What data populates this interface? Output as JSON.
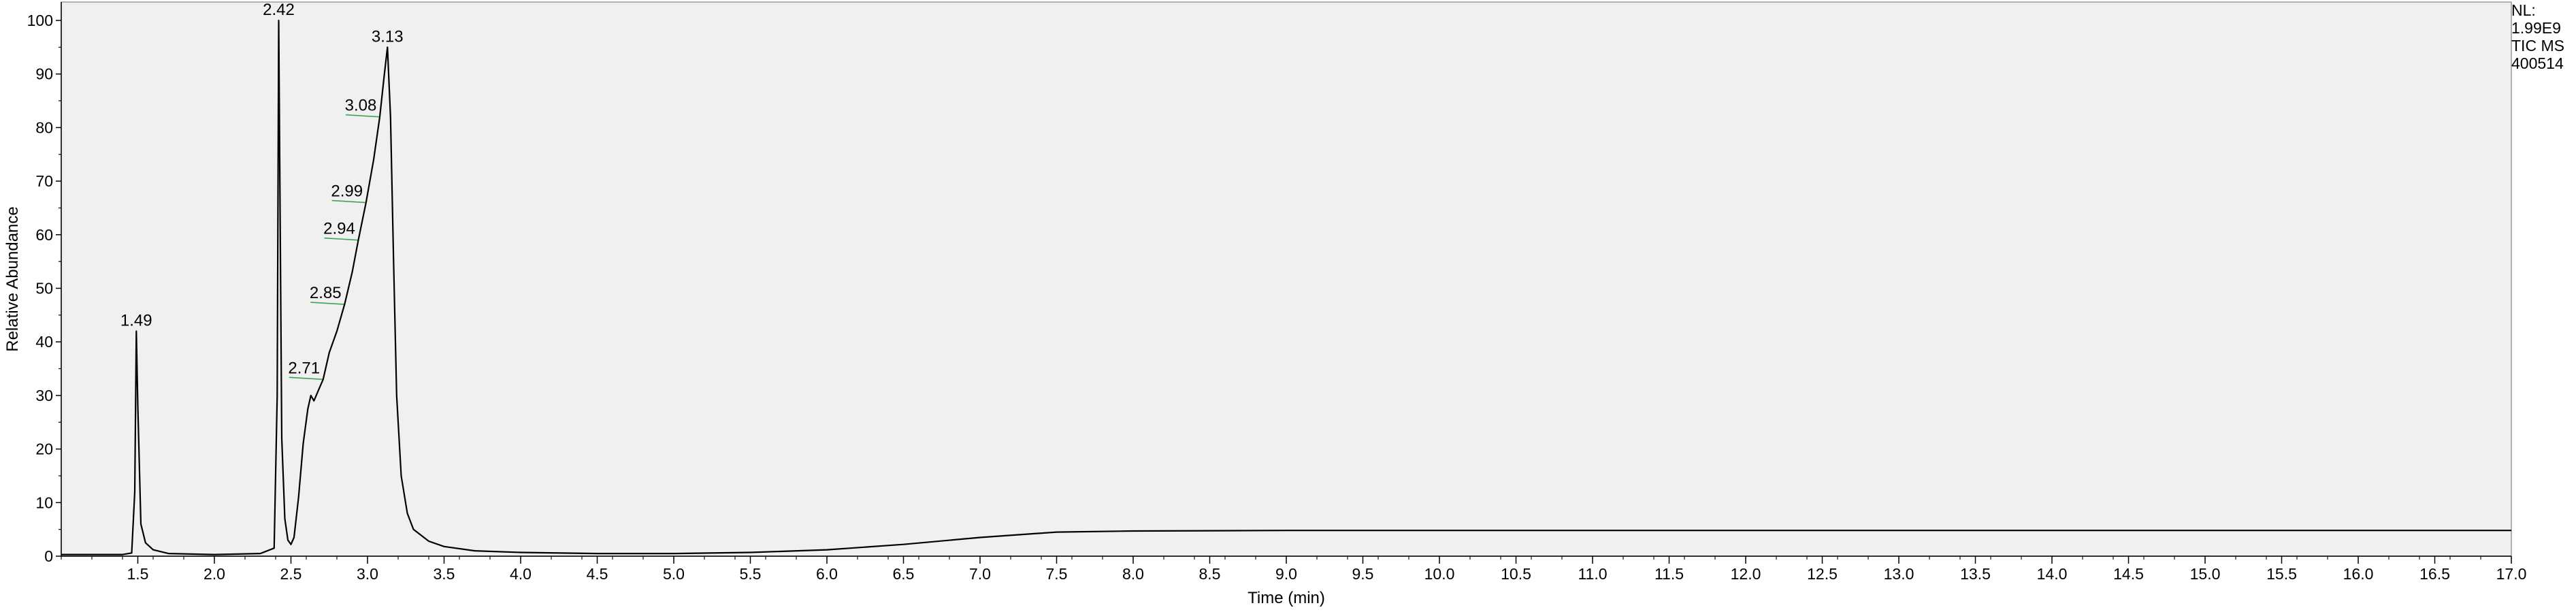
{
  "chart_data": {
    "type": "line",
    "title": "",
    "xlabel": "Time (min)",
    "ylabel": "Relative Abundance",
    "xlim": [
      1.0,
      17.0
    ],
    "ylim": [
      0,
      100
    ],
    "x_ticks": [
      1.5,
      2.0,
      2.5,
      3.0,
      3.5,
      4.0,
      4.5,
      5.0,
      5.5,
      6.0,
      6.5,
      7.0,
      7.5,
      8.0,
      8.5,
      9.0,
      9.5,
      10.0,
      10.5,
      11.0,
      11.5,
      12.0,
      12.5,
      13.0,
      13.5,
      14.0,
      14.5,
      15.0,
      15.5,
      16.0,
      16.5,
      17.0
    ],
    "x_tick_labels": [
      "1.5",
      "2.0",
      "2.5",
      "3.0",
      "3.5",
      "4.0",
      "4.5",
      "5.0",
      "5.5",
      "6.0",
      "6.5",
      "7.0",
      "7.5",
      "8.0",
      "8.5",
      "9.0",
      "9.5",
      "10.0",
      "10.5",
      "11.0",
      "11.5",
      "12.0",
      "12.5",
      "13.0",
      "13.5",
      "14.0",
      "14.5",
      "15.0",
      "15.5",
      "16.0",
      "16.5",
      "17.0"
    ],
    "y_ticks": [
      0,
      10,
      20,
      30,
      40,
      50,
      60,
      70,
      80,
      90,
      100
    ],
    "y_tick_labels": [
      "0",
      "10",
      "20",
      "30",
      "40",
      "50",
      "60",
      "70",
      "80",
      "90",
      "100"
    ],
    "grid": false,
    "series": [
      {
        "x": [
          1.0,
          1.4,
          1.46,
          1.48,
          1.49,
          1.5,
          1.52,
          1.55,
          1.6,
          1.7,
          2.0,
          2.3,
          2.39,
          2.41,
          2.42,
          2.43,
          2.44,
          2.46,
          2.48,
          2.5,
          2.52,
          2.55,
          2.58,
          2.61,
          2.63,
          2.65,
          2.68,
          2.71,
          2.75,
          2.8,
          2.85,
          2.9,
          2.94,
          2.99,
          3.04,
          3.08,
          3.11,
          3.13,
          3.15,
          3.17,
          3.19,
          3.22,
          3.26,
          3.3,
          3.4,
          3.5,
          3.7,
          4.0,
          4.5,
          5.0,
          5.5,
          6.0,
          6.5,
          7.0,
          7.5,
          8.0,
          9.0,
          10.0,
          11.0,
          12.0,
          13.0,
          14.0,
          15.0,
          16.0,
          17.0
        ],
        "y": [
          0.3,
          0.3,
          0.6,
          12,
          42,
          28,
          6,
          2.5,
          1.2,
          0.5,
          0.3,
          0.5,
          1.5,
          30,
          100,
          60,
          22,
          7,
          3,
          2.2,
          3.5,
          11,
          21,
          27.5,
          30,
          29,
          31,
          33,
          38,
          42,
          47,
          53,
          59,
          66,
          74,
          82,
          90,
          95,
          82,
          55,
          30,
          15,
          8,
          5,
          2.8,
          1.8,
          1.0,
          0.7,
          0.5,
          0.5,
          0.7,
          1.2,
          2.2,
          3.5,
          4.5,
          4.7,
          4.8,
          4.8,
          4.8,
          4.8,
          4.8,
          4.8,
          4.8,
          4.8,
          4.8
        ]
      }
    ],
    "peak_labels": [
      {
        "text": "1.49",
        "x": 1.49,
        "y": 42
      },
      {
        "text": "2.42",
        "x": 2.42,
        "y": 100
      },
      {
        "text": "2.71",
        "x": 2.71,
        "y": 33
      },
      {
        "text": "2.85",
        "x": 2.85,
        "y": 47
      },
      {
        "text": "2.94",
        "x": 2.94,
        "y": 59
      },
      {
        "text": "2.99",
        "x": 2.99,
        "y": 66
      },
      {
        "text": "3.08",
        "x": 3.08,
        "y": 82
      },
      {
        "text": "3.13",
        "x": 3.13,
        "y": 95
      }
    ]
  },
  "info": {
    "nl_label": "NL:",
    "nl_value": "1.99E9",
    "scan_filter": "TIC  MS",
    "sample": "400514"
  }
}
